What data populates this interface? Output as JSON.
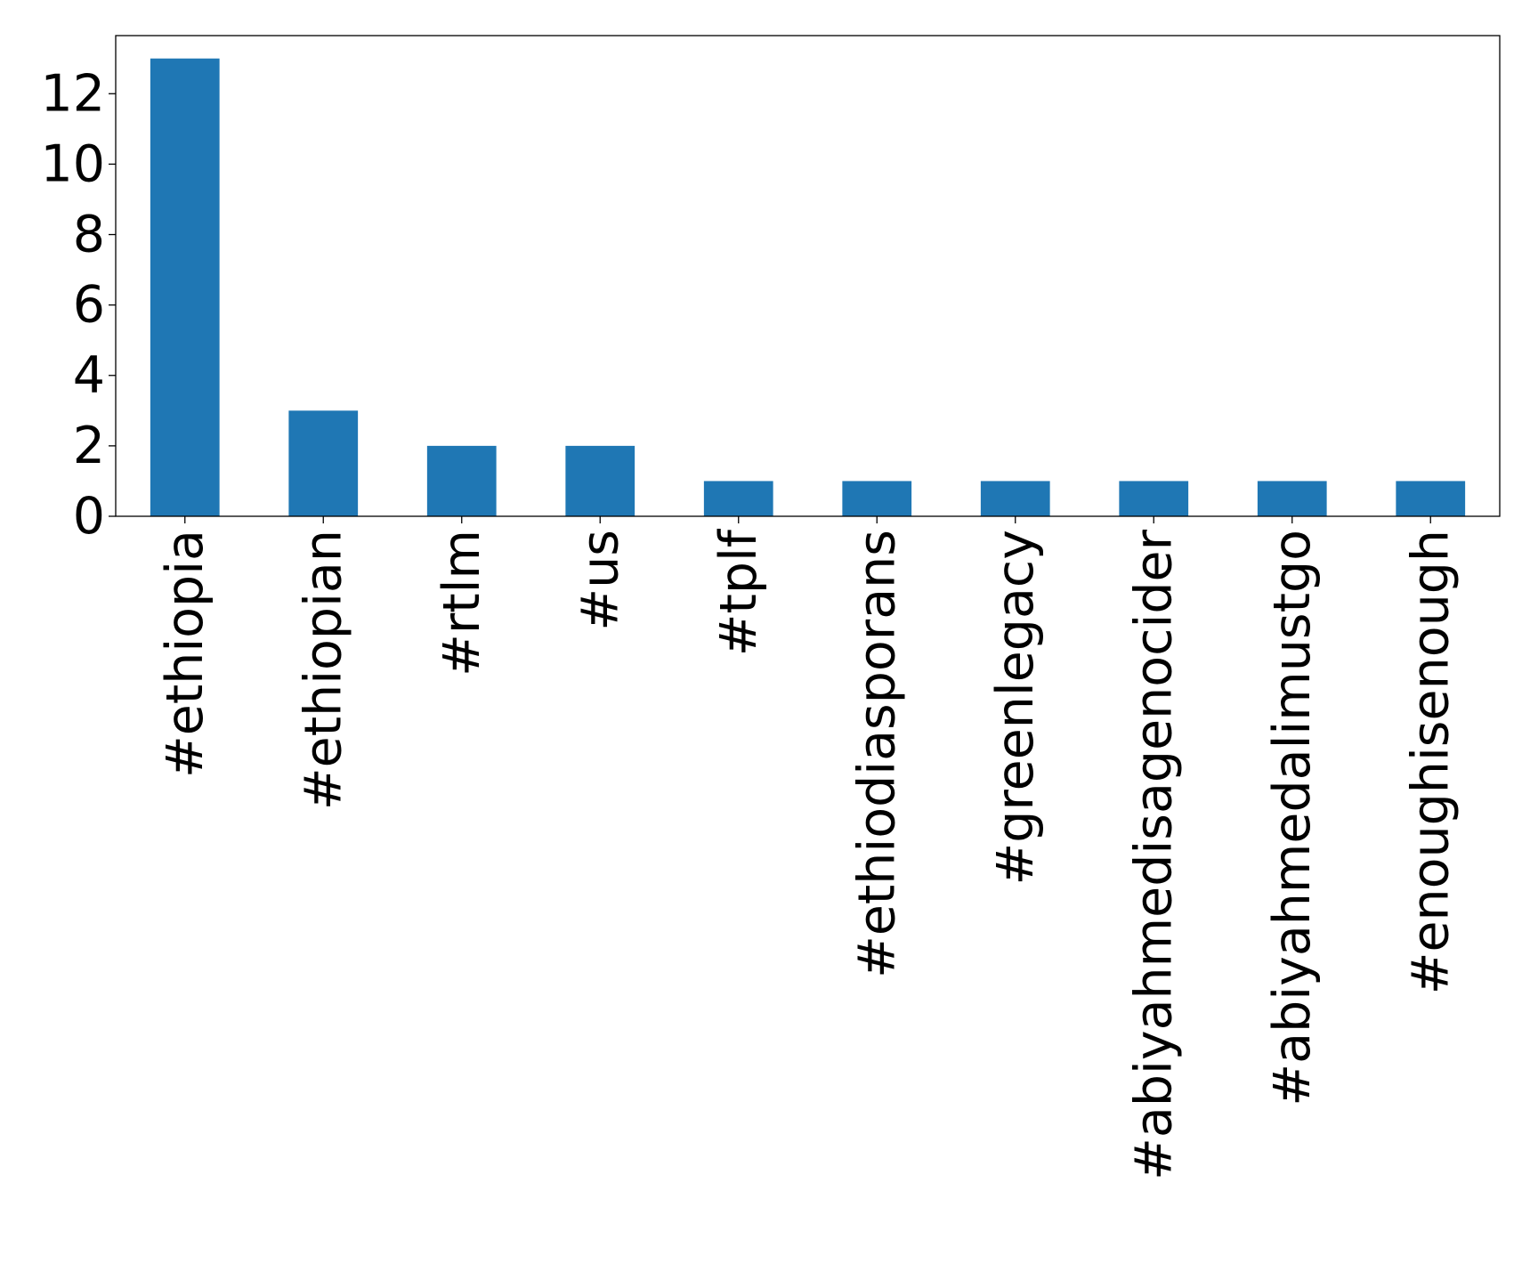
{
  "chart_data": {
    "type": "bar",
    "categories": [
      "#ethiopia",
      "#ethiopian",
      "#rtlm",
      "#us",
      "#tplf",
      "#ethiodiasporans",
      "#greenlegacy",
      "#abiyahmedisagenocider",
      "#abiyahmedalimustgo",
      "#enoughisenough"
    ],
    "values": [
      13,
      3,
      2,
      2,
      1,
      1,
      1,
      1,
      1,
      1
    ],
    "ylim": [
      0,
      13.65
    ],
    "yticks": [
      0,
      2,
      4,
      6,
      8,
      10,
      12
    ],
    "grid": false,
    "legend": "none",
    "bar_color": "#1f77b4"
  }
}
